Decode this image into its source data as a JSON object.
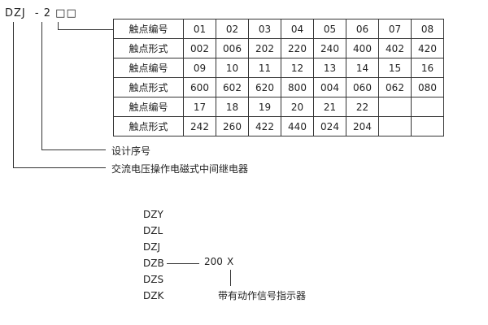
{
  "model_code": {
    "prefix": "DZJ",
    "dash": "-",
    "series": "2",
    "boxes": "□□"
  },
  "table": {
    "rows": [
      [
        "触点编号",
        "01",
        "02",
        "03",
        "04",
        "05",
        "06",
        "07",
        "08"
      ],
      [
        "触点形式",
        "002",
        "006",
        "202",
        "220",
        "240",
        "400",
        "402",
        "420"
      ],
      [
        "触点编号",
        "09",
        "10",
        "11",
        "12",
        "13",
        "14",
        "15",
        "16"
      ],
      [
        "触点形式",
        "600",
        "602",
        "620",
        "800",
        "004",
        "060",
        "062",
        "080"
      ],
      [
        "触点编号",
        "17",
        "18",
        "19",
        "20",
        "21",
        "22",
        "",
        ""
      ],
      [
        "触点形式",
        "242",
        "260",
        "422",
        "440",
        "024",
        "204",
        "",
        ""
      ]
    ]
  },
  "labels": {
    "design_no": "设计序号",
    "relay_type": "交流电压操作电磁式中间继电器"
  },
  "variants": [
    "DZY",
    "DZL",
    "DZJ",
    "DZB",
    "DZS",
    "DZK"
  ],
  "suffix": {
    "code": "200",
    "x": "X",
    "indicator": "带有动作信号指示器"
  }
}
